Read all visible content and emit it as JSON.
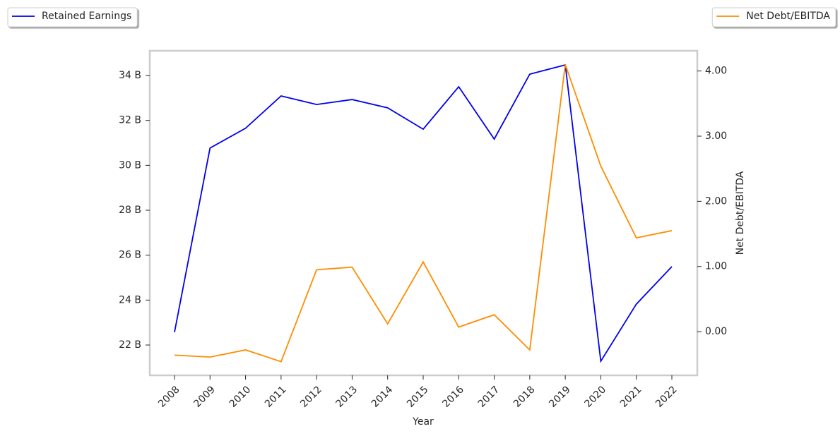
{
  "chart_data": {
    "type": "line",
    "x_label": "Year",
    "y2_label": "Net Debt/EBITDA",
    "categories": [
      "2008",
      "2009",
      "2010",
      "2011",
      "2012",
      "2013",
      "2014",
      "2015",
      "2016",
      "2017",
      "2018",
      "2019",
      "2020",
      "2021",
      "2022"
    ],
    "series": [
      {
        "name": "Retained Earnings",
        "color": "#0000ee",
        "legend": "upper left",
        "values": [
          22.57,
          30.77,
          31.65,
          33.09,
          32.71,
          32.93,
          32.56,
          31.61,
          33.5,
          31.17,
          34.06,
          34.47,
          21.28,
          23.82,
          25.49
        ]
      },
      {
        "name": "Net Debt/EBITDA",
        "color": "#ff8c00",
        "axis": "y2",
        "legend": "upper right",
        "values": [
          -0.36,
          -0.39,
          -0.28,
          -0.46,
          0.95,
          0.99,
          0.12,
          1.07,
          0.07,
          0.26,
          -0.28,
          4.1,
          2.54,
          1.44,
          1.55
        ]
      }
    ],
    "ylim": [
      20.65,
      35.1
    ],
    "yticks": [
      {
        "value": 22,
        "label": "22 B"
      },
      {
        "value": 24,
        "label": "24 B"
      },
      {
        "value": 26,
        "label": "26 B"
      },
      {
        "value": 28,
        "label": "28 B"
      },
      {
        "value": 30,
        "label": "30 B"
      },
      {
        "value": 32,
        "label": "32 B"
      },
      {
        "value": 34,
        "label": "34 B"
      }
    ],
    "y2lim": [
      -0.67,
      4.31
    ],
    "y2ticks": [
      {
        "value": 0,
        "label": "0.00"
      },
      {
        "value": 1,
        "label": "1.00"
      },
      {
        "value": 2,
        "label": "2.00"
      },
      {
        "value": 3,
        "label": "3.00"
      },
      {
        "value": 4,
        "label": "4.00"
      }
    ]
  }
}
